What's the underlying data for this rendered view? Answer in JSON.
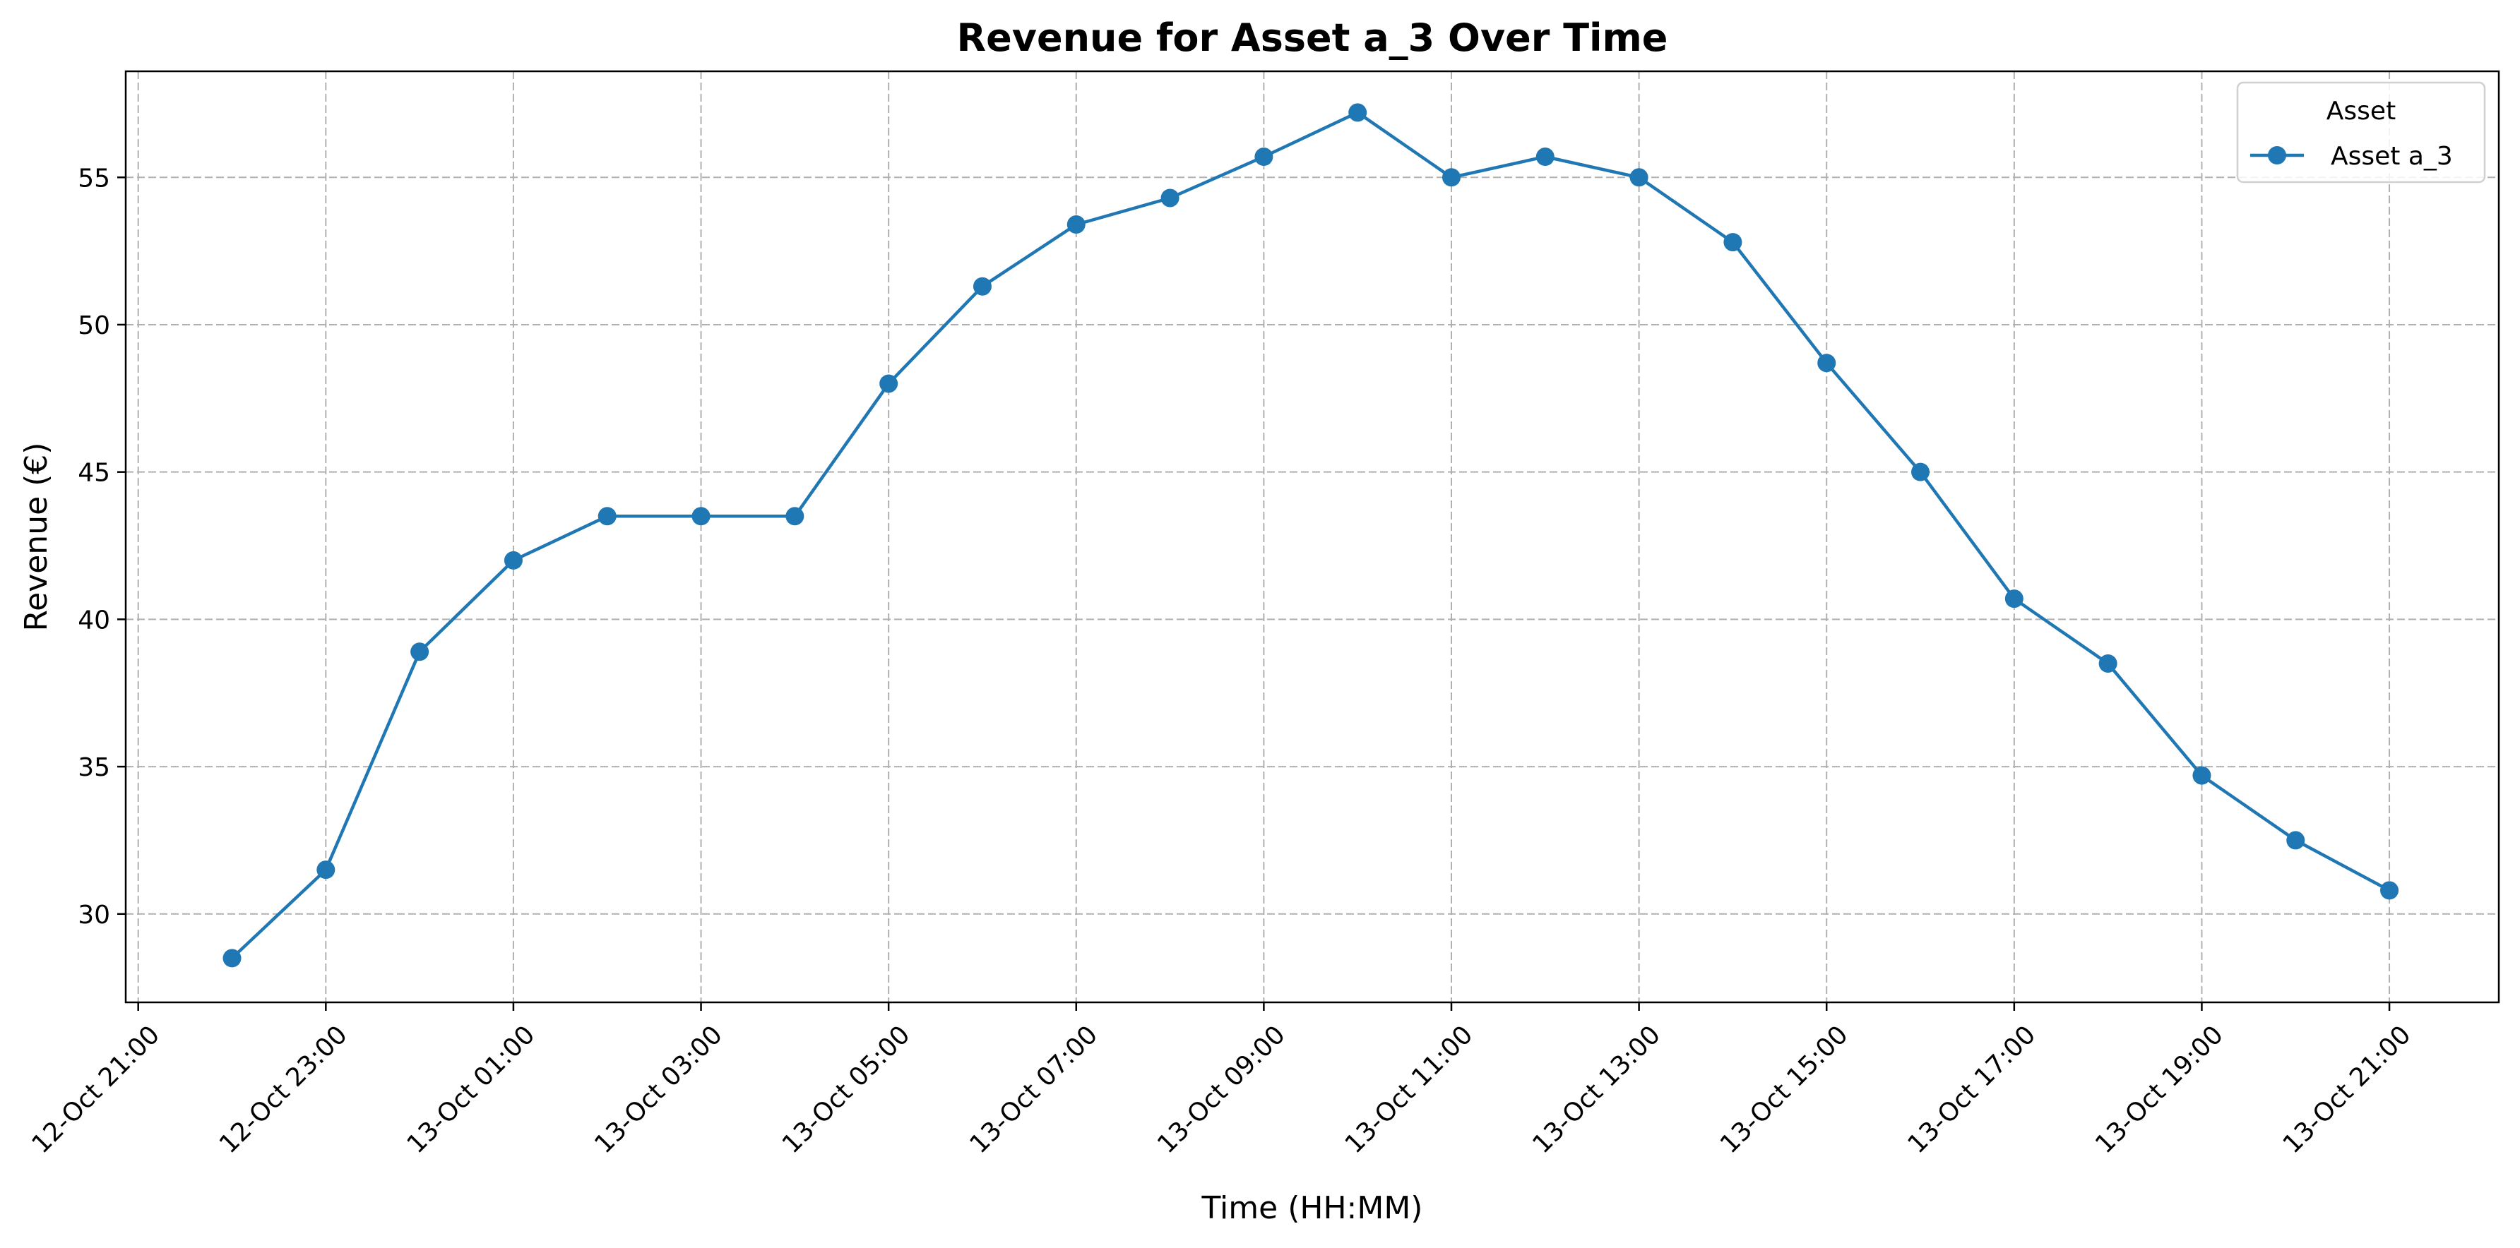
{
  "chart_data": {
    "type": "line",
    "title": "Revenue for Asset a_3 Over Time",
    "xlabel": "Time (HH:MM)",
    "ylabel": "Revenue (€)",
    "x_tick_labels": [
      "12-Oct 21:00",
      "12-Oct 23:00",
      "13-Oct 01:00",
      "13-Oct 03:00",
      "13-Oct 05:00",
      "13-Oct 07:00",
      "13-Oct 09:00",
      "13-Oct 11:00",
      "13-Oct 13:00",
      "13-Oct 15:00",
      "13-Oct 17:00",
      "13-Oct 19:00",
      "13-Oct 21:00"
    ],
    "y_ticks": [
      30,
      35,
      40,
      45,
      50,
      55
    ],
    "xlim": [
      "12-Oct 20:52",
      "13-Oct 22:10"
    ],
    "ylim": [
      27.0,
      58.6
    ],
    "grid": true,
    "legend": {
      "title": "Asset",
      "placement": "top-right"
    },
    "series": [
      {
        "name": "Asset a_3",
        "color": "#1f77b4",
        "marker": "circle",
        "x": [
          "12-Oct 22:00",
          "12-Oct 23:00",
          "13-Oct 00:00",
          "13-Oct 01:00",
          "13-Oct 02:00",
          "13-Oct 03:00",
          "13-Oct 04:00",
          "13-Oct 05:00",
          "13-Oct 06:00",
          "13-Oct 07:00",
          "13-Oct 08:00",
          "13-Oct 09:00",
          "13-Oct 10:00",
          "13-Oct 11:00",
          "13-Oct 12:00",
          "13-Oct 13:00",
          "13-Oct 14:00",
          "13-Oct 15:00",
          "13-Oct 16:00",
          "13-Oct 17:00",
          "13-Oct 18:00",
          "13-Oct 19:00",
          "13-Oct 20:00",
          "13-Oct 21:00"
        ],
        "y": [
          28.5,
          31.5,
          38.9,
          42.0,
          43.5,
          43.5,
          43.5,
          48.0,
          51.3,
          53.4,
          54.3,
          55.7,
          57.2,
          55.0,
          55.7,
          55.0,
          52.8,
          48.7,
          45.0,
          40.7,
          38.5,
          34.7,
          32.5,
          30.8
        ]
      }
    ]
  }
}
